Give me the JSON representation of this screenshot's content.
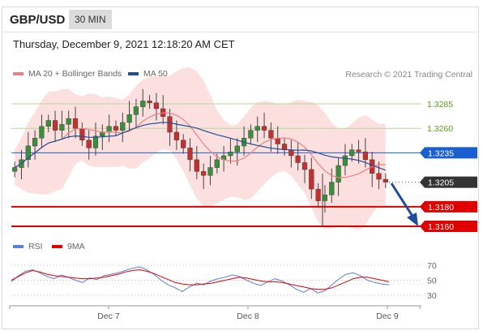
{
  "header": {
    "symbol": "GBP/USD",
    "interval": "30 MIN",
    "timestamp": "Thursday, December 9, 2021 12:18:20 AM CET",
    "copyright": "Research © 2021 Trading Central"
  },
  "legend": {
    "main": [
      {
        "label": "MA 20 + Bollinger Bands",
        "color": "#f08080"
      },
      {
        "label": "MA 50",
        "color": "#1f4e9c"
      }
    ],
    "rsi": [
      {
        "label": "RSI",
        "color": "#5b7fd6"
      },
      {
        "label": "9MA",
        "color": "#e00000"
      }
    ]
  },
  "chart_data": [
    {
      "type": "candlestick",
      "title": "GBP/USD 30 MIN",
      "x_ticks": [
        "Dec 7",
        "Dec 8",
        "Dec 9"
      ],
      "ylim": [
        1.315,
        1.33
      ],
      "levels": [
        {
          "value": 1.3285,
          "label": "1.3285",
          "kind": "resistance",
          "color": "#5a9e1a"
        },
        {
          "value": 1.326,
          "label": "1.3260",
          "kind": "resistance",
          "color": "#5a9e1a"
        },
        {
          "value": 1.3235,
          "label": "1.3235",
          "kind": "pivot",
          "color": "#1a5fd0"
        },
        {
          "value": 1.3205,
          "label": "1.3205",
          "kind": "last-price",
          "color": "#333333"
        },
        {
          "value": 1.318,
          "label": "1.3180",
          "kind": "target",
          "color": "#e00000"
        },
        {
          "value": 1.316,
          "label": "1.3160",
          "kind": "target",
          "color": "#e00000"
        }
      ],
      "close_series": [
        1.322,
        1.3228,
        1.3242,
        1.325,
        1.3262,
        1.3268,
        1.3258,
        1.3264,
        1.327,
        1.326,
        1.3248,
        1.324,
        1.3252,
        1.3256,
        1.3262,
        1.3258,
        1.3266,
        1.3274,
        1.3282,
        1.3288,
        1.3286,
        1.328,
        1.3272,
        1.3256,
        1.3248,
        1.324,
        1.3228,
        1.3216,
        1.3212,
        1.322,
        1.3228,
        1.3232,
        1.3236,
        1.3242,
        1.325,
        1.3258,
        1.3262,
        1.3258,
        1.325,
        1.3244,
        1.3238,
        1.3232,
        1.3225,
        1.3218,
        1.3198,
        1.3186,
        1.3192,
        1.3205,
        1.3222,
        1.3232,
        1.3238,
        1.3236,
        1.3228,
        1.3214,
        1.3208,
        1.3205
      ],
      "moving_averages": [
        "MA 20",
        "Bollinger Bands",
        "MA 50"
      ],
      "forecast": "arrow down toward 1.3160"
    },
    {
      "type": "line",
      "title": "RSI",
      "x_ticks": [
        "Dec 7",
        "Dec 8",
        "Dec 9"
      ],
      "ylim": [
        20,
        80
      ],
      "y_ticks": [
        70,
        50,
        30
      ],
      "series": [
        {
          "name": "RSI",
          "values": [
            48,
            56,
            62,
            64,
            60,
            55,
            52,
            57,
            54,
            50,
            47,
            53,
            51,
            56,
            58,
            60,
            63,
            66,
            68,
            64,
            58,
            50,
            44,
            40,
            35,
            41,
            46,
            44,
            49,
            52,
            54,
            57,
            55,
            50,
            46,
            43,
            48,
            52,
            49,
            44,
            38,
            34,
            39,
            33,
            36,
            44,
            52,
            58,
            60,
            56,
            50,
            47,
            45,
            44
          ]
        },
        {
          "name": "9MA",
          "values": [
            50,
            55,
            60,
            63,
            61,
            58,
            56,
            55,
            54,
            53,
            52,
            52,
            53,
            54,
            56,
            58,
            61,
            63,
            64,
            62,
            59,
            55,
            51,
            47,
            45,
            44,
            44,
            45,
            46,
            48,
            50,
            52,
            54,
            53,
            51,
            49,
            48,
            48,
            47,
            45,
            43,
            41,
            39,
            38,
            38,
            40,
            44,
            48,
            52,
            54,
            54,
            52,
            50,
            48
          ]
        }
      ]
    }
  ]
}
